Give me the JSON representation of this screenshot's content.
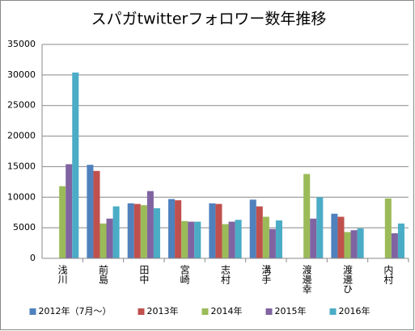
{
  "chart_data": {
    "type": "bar",
    "title": "スパガtwitterフォロワー数年推移",
    "categories": [
      "浅川",
      "前島",
      "田中",
      "宮崎",
      "志村",
      "溝手",
      "渡邊幸",
      "渡邊ひ",
      "内村"
    ],
    "series": [
      {
        "name": "2012年（7月～）",
        "color": "#4f81bd",
        "values": [
          null,
          15300,
          9000,
          9700,
          9000,
          9600,
          null,
          7300,
          null
        ]
      },
      {
        "name": "2013年",
        "color": "#c0504d",
        "values": [
          null,
          14300,
          8900,
          9500,
          8900,
          8500,
          null,
          6800,
          null
        ]
      },
      {
        "name": "2014年",
        "color": "#9bbb59",
        "values": [
          11800,
          5700,
          8700,
          6100,
          5600,
          6800,
          13800,
          4300,
          9800
        ]
      },
      {
        "name": "2015年",
        "color": "#8064a2",
        "values": [
          15400,
          6500,
          11000,
          6000,
          6000,
          4800,
          6500,
          4600,
          4100
        ]
      },
      {
        "name": "2016年",
        "color": "#4bacc6",
        "values": [
          30400,
          8500,
          8200,
          6000,
          6300,
          6200,
          10000,
          4900,
          5700
        ]
      }
    ],
    "ylim": [
      0,
      35000
    ],
    "yticks": [
      0,
      5000,
      10000,
      15000,
      20000,
      25000,
      30000,
      35000
    ],
    "grid": true,
    "legend": "bottom"
  }
}
